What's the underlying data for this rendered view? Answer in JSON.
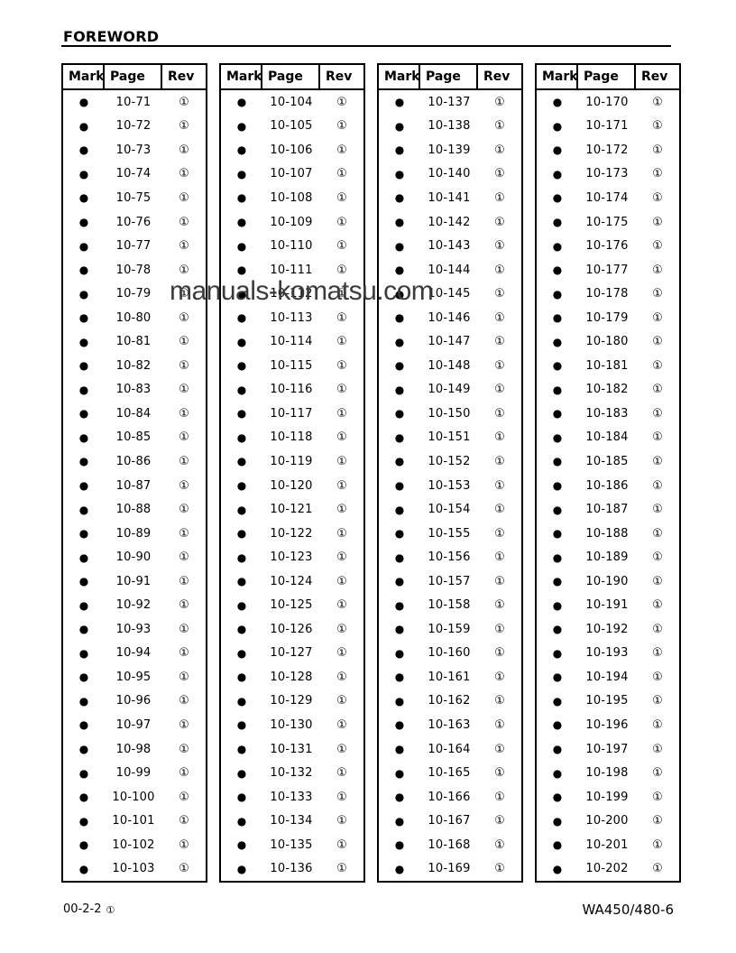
{
  "page": {
    "title": "FOREWORD",
    "watermark": "manuals-komatsu.com",
    "footer_left": "00-2-2",
    "footer_left_symbol": "①",
    "footer_right": "WA450/480-6"
  },
  "table_headers": [
    "Mark",
    "Page",
    "Rev"
  ],
  "symbols": {
    "mark": "●",
    "rev": "①"
  },
  "colors": {
    "text": "#000000",
    "border": "#000000",
    "watermark": "#3b3b3b",
    "background": "#ffffff"
  },
  "tables": [
    {
      "pages": [
        "10-71",
        "10-72",
        "10-73",
        "10-74",
        "10-75",
        "10-76",
        "10-77",
        "10-78",
        "10-79",
        "10-80",
        "10-81",
        "10-82",
        "10-83",
        "10-84",
        "10-85",
        "10-86",
        "10-87",
        "10-88",
        "10-89",
        "10-90",
        "10-91",
        "10-92",
        "10-93",
        "10-94",
        "10-95",
        "10-96",
        "10-97",
        "10-98",
        "10-99",
        "10-100",
        "10-101",
        "10-102",
        "10-103"
      ]
    },
    {
      "pages": [
        "10-104",
        "10-105",
        "10-106",
        "10-107",
        "10-108",
        "10-109",
        "10-110",
        "10-111",
        "10-112",
        "10-113",
        "10-114",
        "10-115",
        "10-116",
        "10-117",
        "10-118",
        "10-119",
        "10-120",
        "10-121",
        "10-122",
        "10-123",
        "10-124",
        "10-125",
        "10-126",
        "10-127",
        "10-128",
        "10-129",
        "10-130",
        "10-131",
        "10-132",
        "10-133",
        "10-134",
        "10-135",
        "10-136"
      ]
    },
    {
      "pages": [
        "10-137",
        "10-138",
        "10-139",
        "10-140",
        "10-141",
        "10-142",
        "10-143",
        "10-144",
        "10-145",
        "10-146",
        "10-147",
        "10-148",
        "10-149",
        "10-150",
        "10-151",
        "10-152",
        "10-153",
        "10-154",
        "10-155",
        "10-156",
        "10-157",
        "10-158",
        "10-159",
        "10-160",
        "10-161",
        "10-162",
        "10-163",
        "10-164",
        "10-165",
        "10-166",
        "10-167",
        "10-168",
        "10-169"
      ]
    },
    {
      "pages": [
        "10-170",
        "10-171",
        "10-172",
        "10-173",
        "10-174",
        "10-175",
        "10-176",
        "10-177",
        "10-178",
        "10-179",
        "10-180",
        "10-181",
        "10-182",
        "10-183",
        "10-184",
        "10-185",
        "10-186",
        "10-187",
        "10-188",
        "10-189",
        "10-190",
        "10-191",
        "10-192",
        "10-193",
        "10-194",
        "10-195",
        "10-196",
        "10-197",
        "10-198",
        "10-199",
        "10-200",
        "10-201",
        "10-202"
      ]
    }
  ]
}
